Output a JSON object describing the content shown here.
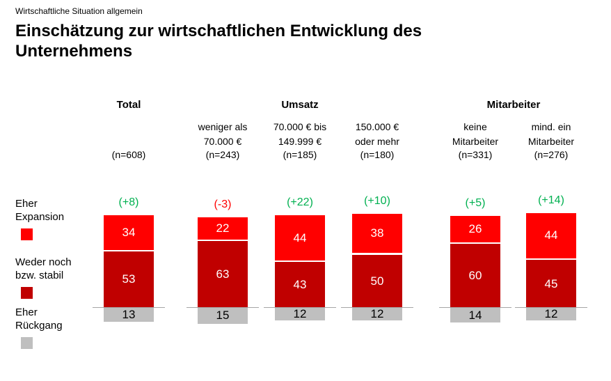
{
  "header": {
    "kicker": "Wirtschaftliche Situation allgemein",
    "title": "Einschätzung zur wirtschaftlichen Entwicklung des Unternehmens"
  },
  "colors": {
    "expansion_red": "#FF0000",
    "stabil_dark_red": "#C00000",
    "rueckgang_gray": "#BFBFBF",
    "delta_positive_green": "#00B050",
    "delta_negative_red": "#FF0000",
    "axis_line_gray": "#A6A6A6"
  },
  "legend": {
    "items": [
      {
        "lines": [
          "Eher",
          "Expansion"
        ],
        "color": "#FF0000"
      },
      {
        "lines": [
          "Weder noch",
          "bzw. stabil"
        ],
        "color": "#C00000"
      },
      {
        "lines": [
          "Eher",
          "Rückgang"
        ],
        "color": "#BFBFBF"
      }
    ]
  },
  "chart_data": {
    "type": "bar",
    "stacked": true,
    "title": "Einschätzung zur wirtschaftlichen Entwicklung des Unternehmens",
    "group_headers": [
      {
        "label": "Total",
        "columns": [
          0
        ]
      },
      {
        "label": "Umsatz",
        "columns": [
          1,
          2,
          3
        ]
      },
      {
        "label": "Mitarbeiter",
        "columns": [
          4,
          5
        ]
      }
    ],
    "categories": [
      "Total",
      "weniger als 70.000 €",
      "70.000 € bis 149.999 €",
      "150.000 € oder mehr",
      "keine Mitarbeiter",
      "mind. ein Mitarbeiter"
    ],
    "column_label_lines": [
      [],
      [
        "weniger als",
        "70.000 €"
      ],
      [
        "70.000 € bis",
        "149.999 €"
      ],
      [
        "150.000 €",
        "oder mehr"
      ],
      [
        "keine",
        "Mitarbeiter"
      ],
      [
        "mind. ein",
        "Mitarbeiter"
      ]
    ],
    "n_labels": [
      "(n=608)",
      "(n=243)",
      "(n=185)",
      "(n=180)",
      "(n=331)",
      "(n=276)"
    ],
    "deltas": [
      {
        "text": "(+8)",
        "color": "#00B050"
      },
      {
        "text": "(-3)",
        "color": "#FF0000"
      },
      {
        "text": "(+22)",
        "color": "#00B050"
      },
      {
        "text": "(+10)",
        "color": "#00B050"
      },
      {
        "text": "(+5)",
        "color": "#00B050"
      },
      {
        "text": "(+14)",
        "color": "#00B050"
      }
    ],
    "series": [
      {
        "name": "Eher Expansion",
        "color": "#FF0000",
        "values": [
          34,
          22,
          44,
          38,
          26,
          44
        ]
      },
      {
        "name": "Weder noch bzw. stabil",
        "color": "#C00000",
        "values": [
          53,
          63,
          43,
          50,
          60,
          45
        ]
      },
      {
        "name": "Eher Rückgang",
        "color": "#BFBFBF",
        "values": [
          13,
          15,
          12,
          12,
          14,
          12
        ]
      }
    ],
    "value_labels_shown": true,
    "legend_position": "left",
    "grid": false
  }
}
